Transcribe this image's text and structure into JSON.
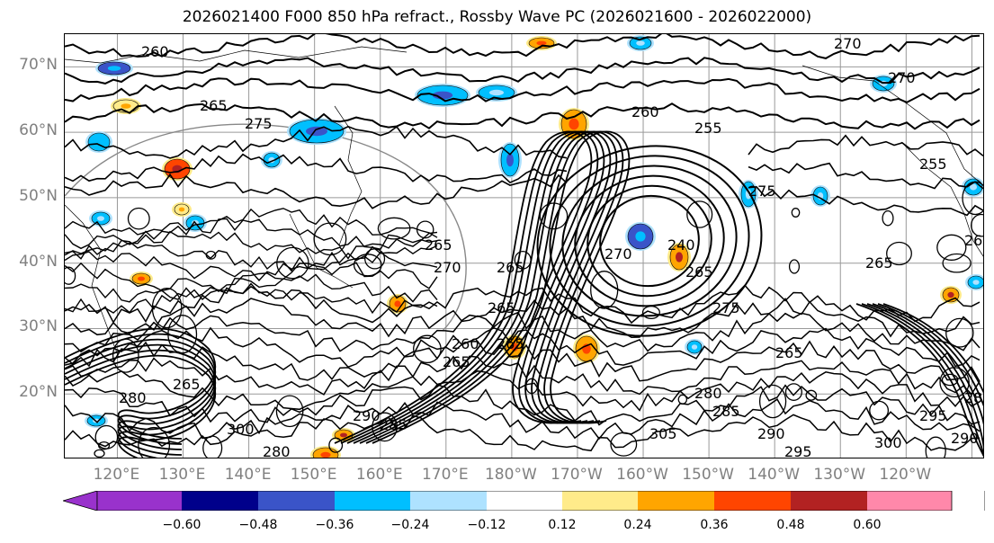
{
  "title": "2026021400 F000 850 hPa refract., Rossby Wave PC (2026021600 - 2026022000)",
  "lat_labels": [
    "70°N",
    "60°N",
    "50°N",
    "40°N",
    "30°N",
    "20°N"
  ],
  "lat_values": [
    70,
    60,
    50,
    40,
    30,
    20
  ],
  "lon_labels": [
    "120°E",
    "130°E",
    "140°E",
    "150°E",
    "160°E",
    "170°E",
    "180°W",
    "170°W",
    "160°W",
    "150°W",
    "140°W",
    "130°W",
    "120°W"
  ],
  "map_extent": {
    "lon_min": 112,
    "lon_max": 252,
    "lat_min": 10,
    "lat_max": 75
  },
  "contour_labels": [
    "260",
    "270",
    "270",
    "265",
    "275",
    "260",
    "255",
    "255",
    "270",
    "265",
    "265",
    "265",
    "260",
    "265",
    "265",
    "240",
    "265",
    "270",
    "275",
    "265",
    "280",
    "285",
    "290",
    "295",
    "300",
    "305",
    "300",
    "295",
    "290",
    "285",
    "280",
    "265",
    "290",
    "285",
    "280",
    "275",
    "260",
    "265"
  ],
  "colorbar": {
    "ticks": [
      "−0.60",
      "−0.48",
      "−0.36",
      "−0.24",
      "−0.12",
      "0.12",
      "0.24",
      "0.36",
      "0.48",
      "0.60"
    ],
    "colors": [
      "#9932cc",
      "#00008b",
      "#3a54c8",
      "#00bfff",
      "#aee2ff",
      "#ffffff",
      "#ffeb8a",
      "#ffa500",
      "#ff4500",
      "#b22222",
      "#ff88aa"
    ]
  },
  "colors": {
    "contour": "#000000",
    "gridline": "#999999",
    "axis_label": "#808080"
  }
}
